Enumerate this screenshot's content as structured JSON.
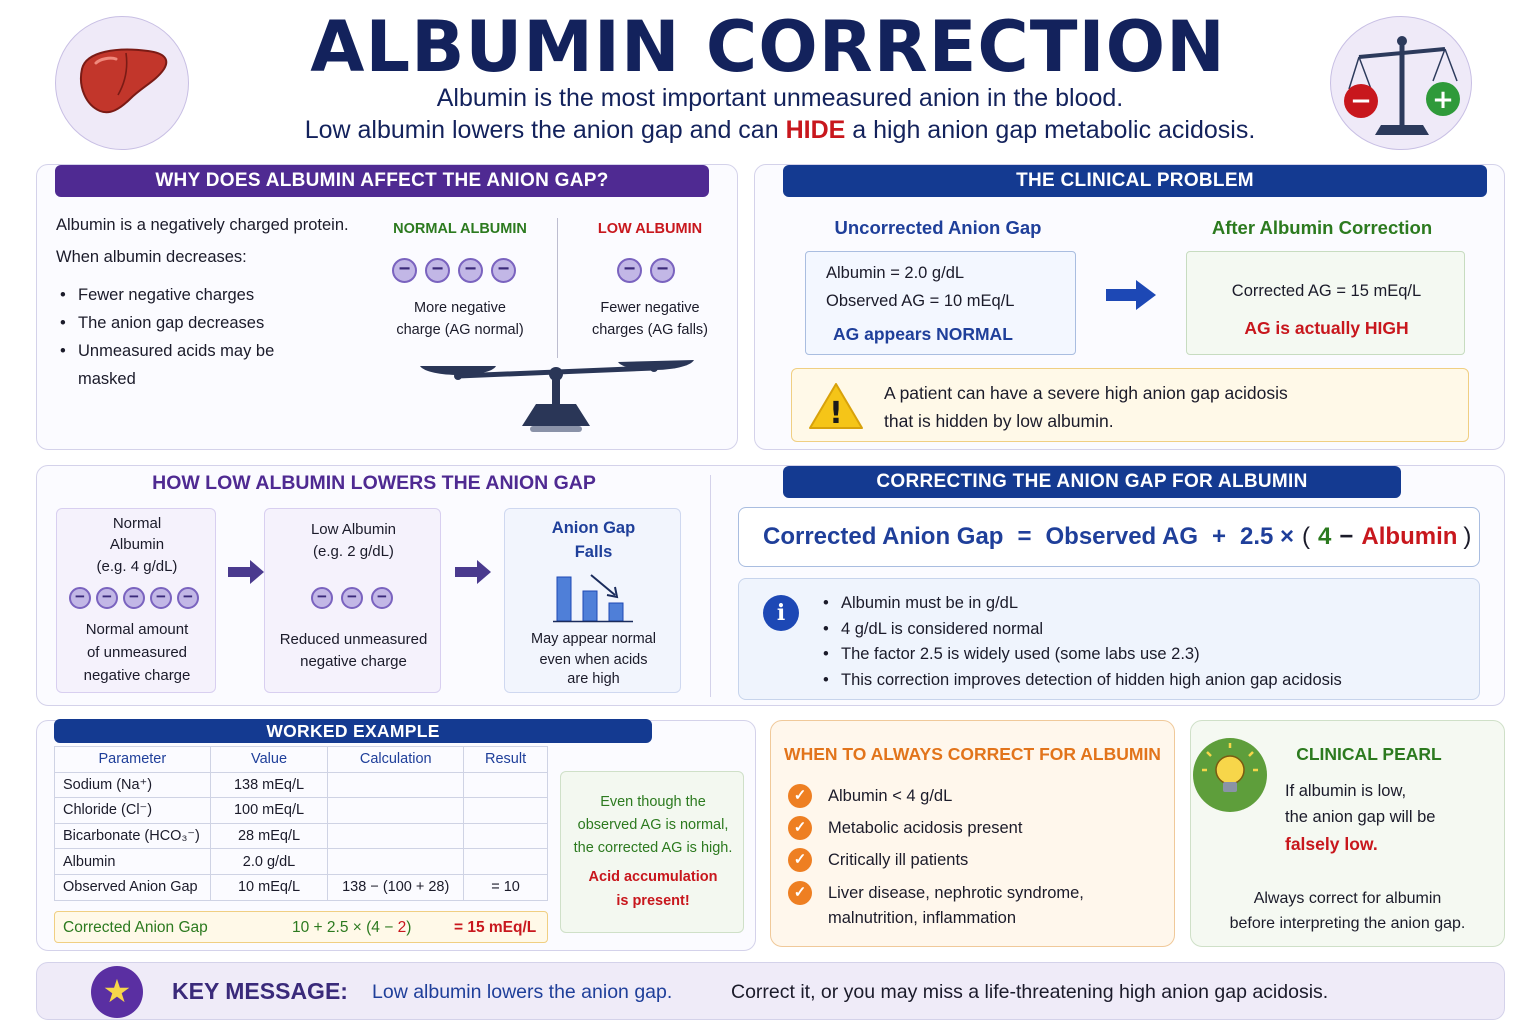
{
  "title": "ALBUMIN CORRECTION",
  "subtitle": {
    "line1": "Albumin is the most important unmeasured anion in the blood.",
    "line2_pre": "Low albumin lowers the anion gap and can ",
    "line2_highlight": "HIDE",
    "line2_post": " a high anion gap metabolic acidosis."
  },
  "why": {
    "header": "WHY DOES ALBUMIN AFFECT THE ANION GAP?",
    "intro": "Albumin is a negatively charged protein.",
    "when": "When albumin decreases:",
    "bullets": [
      "Fewer negative charges",
      "The anion gap decreases",
      "Unmeasured acids may be",
      "masked"
    ],
    "normal_label": "NORMAL ALBUMIN",
    "normal_desc1": "More negative",
    "normal_desc2": "charge (AG normal)",
    "low_label": "LOW ALBUMIN",
    "low_desc1": "Fewer negative",
    "low_desc2": "charges (AG falls)",
    "minus_symbol": "−"
  },
  "clinical": {
    "header": "THE CLINICAL PROBLEM",
    "uncorrected_title": "Uncorrected Anion Gap",
    "uncorrected_line1": "Albumin = 2.0 g/dL",
    "uncorrected_line2": "Observed AG = 10 mEq/L",
    "uncorrected_line3": "AG appears NORMAL",
    "corrected_title": "After Albumin Correction",
    "corrected_line1": "Corrected AG = 15 mEq/L",
    "corrected_line2": "AG is actually HIGH",
    "warning_line1": "A patient can have a severe high anion gap acidosis",
    "warning_line2": "that is hidden by low albumin.",
    "warning_symbol": "!"
  },
  "how": {
    "header": "HOW LOW ALBUMIN LOWERS THE ANION GAP",
    "box1_title1": "Normal",
    "box1_title2": "Albumin",
    "box1_title3": "(e.g. 4 g/dL)",
    "box1_desc1": "Normal amount",
    "box1_desc2": "of unmeasured",
    "box1_desc3": "negative charge",
    "box2_title1": "Low Albumin",
    "box2_title2": "(e.g. 2 g/dL)",
    "box2_desc1": "Reduced unmeasured",
    "box2_desc2": "negative charge",
    "box3_title1": "Anion Gap",
    "box3_title2": "Falls",
    "box3_desc1": "May appear normal",
    "box3_desc2": "even when acids",
    "box3_desc3": "are high"
  },
  "formula": {
    "header": "CORRECTING THE ANION GAP FOR ALBUMIN",
    "lhs": "Corrected Anion Gap",
    "eq": "=",
    "observed": "Observed AG",
    "plus": "+",
    "factor": "2.5 ×",
    "open": "(",
    "four": "4",
    "minus": "−",
    "albumin": "Albumin",
    "close": ")",
    "info_symbol": "i",
    "notes": [
      "Albumin must be in g/dL",
      "4 g/dL is considered normal",
      "The factor 2.5 is widely used (some labs use 2.3)",
      "This correction improves detection of hidden high anion gap acidosis"
    ]
  },
  "worked": {
    "header": "WORKED EXAMPLE",
    "columns": [
      "Parameter",
      "Value",
      "Calculation",
      "Result"
    ],
    "rows": [
      {
        "param": "Sodium (Na⁺)",
        "value": "138 mEq/L",
        "calc": "",
        "result": ""
      },
      {
        "param": "Chloride (Cl⁻)",
        "value": "100 mEq/L",
        "calc": "",
        "result": ""
      },
      {
        "param": "Bicarbonate (HCO₃⁻)",
        "value": "28 mEq/L",
        "calc": "",
        "result": ""
      },
      {
        "param": "Albumin",
        "value": "2.0 g/dL",
        "calc": "",
        "result": ""
      },
      {
        "param": "Observed Anion Gap",
        "value": "10 mEq/L",
        "calc": "138 − (100 + 28)",
        "result": "= 10"
      }
    ],
    "corrected_label": "Corrected Anion Gap",
    "corrected_calc_pre": "10 + 2.5 × (4 − ",
    "corrected_calc_val": "2",
    "corrected_calc_post": ")",
    "corrected_result": "= 15 mEq/L",
    "note_line1": "Even though the",
    "note_line2": "observed AG is normal,",
    "note_line3": "the corrected AG is high.",
    "note_alert1": "Acid accumulation",
    "note_alert2": "is present!"
  },
  "when": {
    "header": "WHEN TO ALWAYS CORRECT FOR ALBUMIN",
    "check_symbol": "✓",
    "items": [
      "Albumin < 4 g/dL",
      "Metabolic acidosis present",
      "Critically ill patients",
      "Liver disease, nephrotic syndrome,",
      "malnutrition, inflammation"
    ]
  },
  "pearl": {
    "header": "CLINICAL PEARL",
    "line1": "If albumin is low,",
    "line2": "the anion gap will be",
    "line3": "falsely low.",
    "line4": "Always correct for albumin",
    "line5": "before interpreting the anion gap."
  },
  "key": {
    "label": "KEY MESSAGE:",
    "part1": "Low albumin lowers the anion gap.",
    "part2": "Correct it, or you may miss a life-threatening high anion gap acidosis.",
    "star_symbol": "★"
  },
  "scale_symbols": {
    "minus": "−",
    "plus": "+"
  },
  "colors": {
    "navy": "#143a91",
    "purple": "#4f2a92",
    "red": "#c8171d",
    "green": "#2c7a1f",
    "orange": "#e2741b",
    "blue_text": "#1f3f9a"
  }
}
